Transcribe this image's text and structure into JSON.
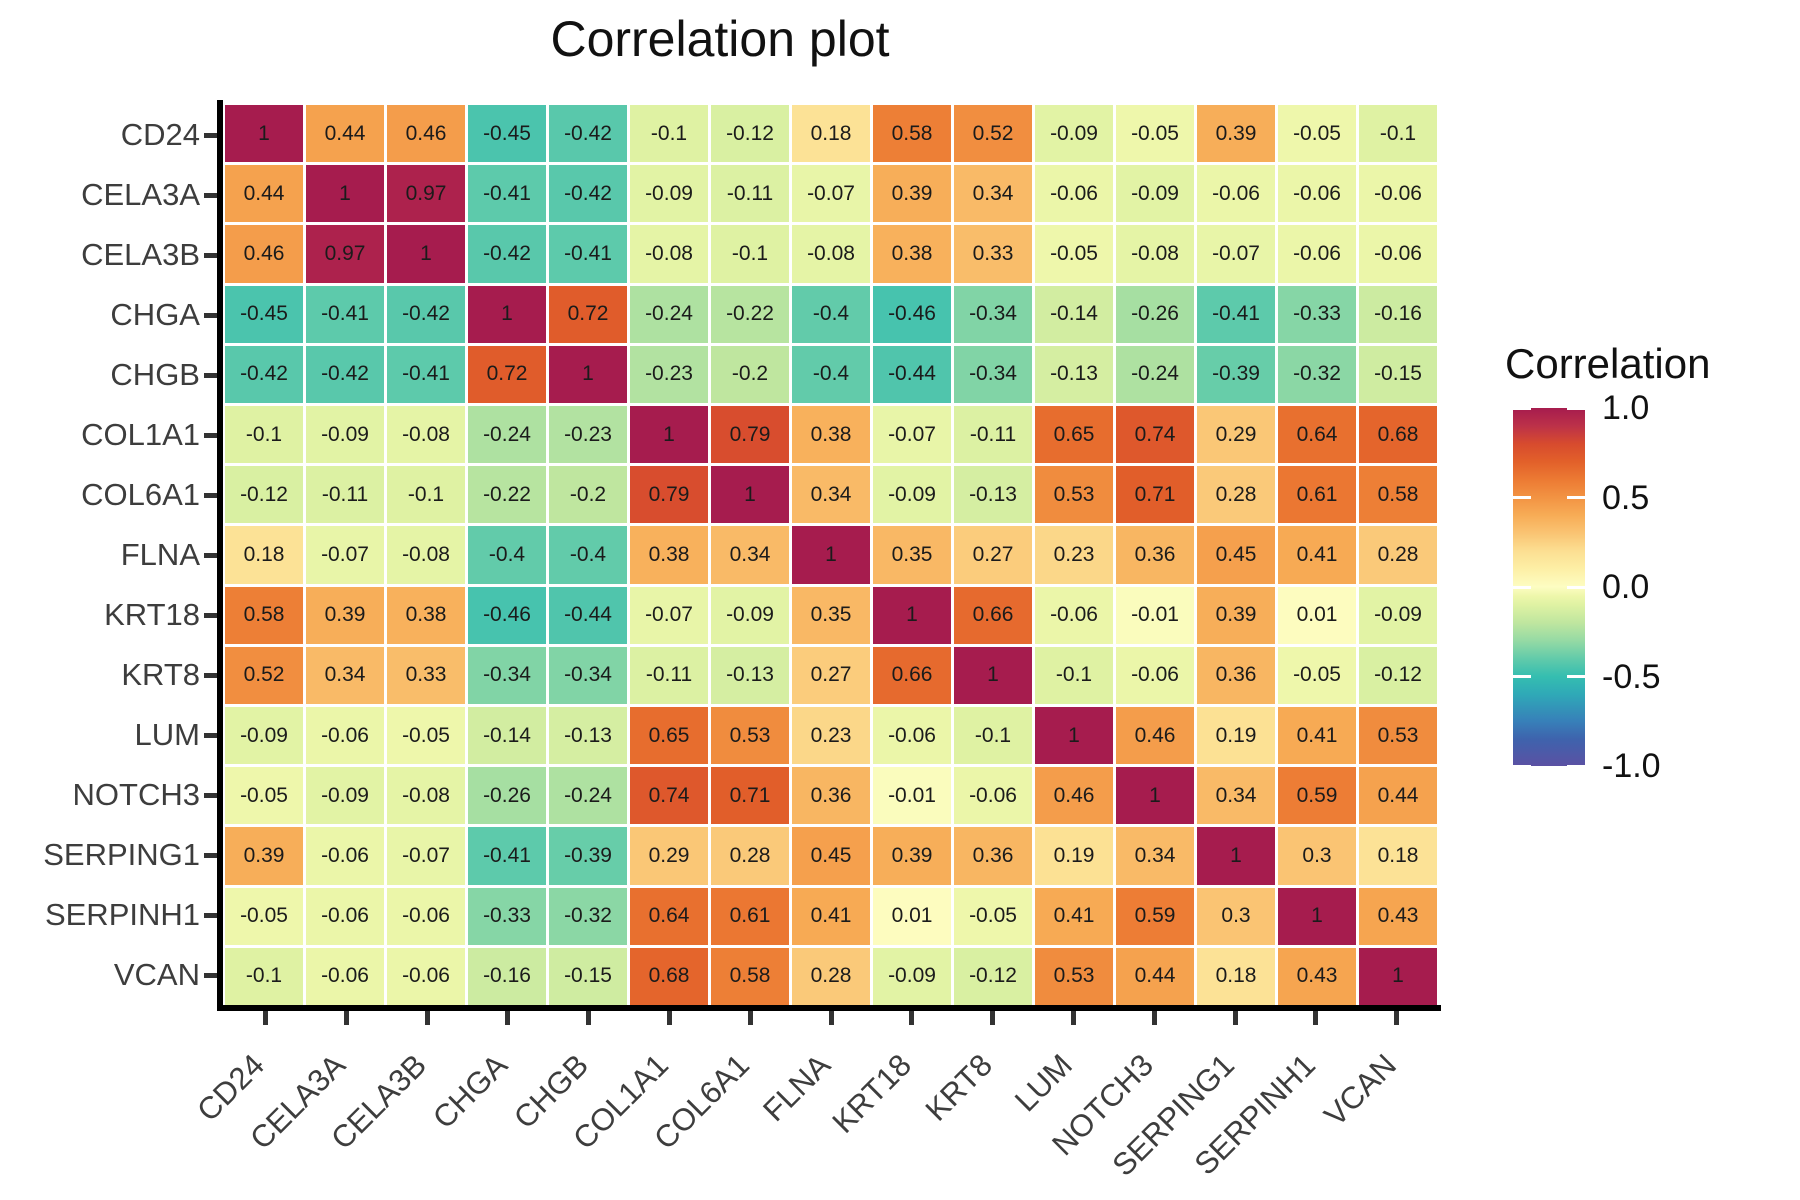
{
  "title": "Correlation plot",
  "legend": {
    "title": "Correlation",
    "ticks": [
      "1.0",
      "0.5",
      "0.0",
      "-0.5",
      "-1.0"
    ],
    "tick_values": [
      1.0,
      0.5,
      0.0,
      -0.5,
      -1.0
    ]
  },
  "colors": {
    "background": "#ffffff",
    "cell_text": "#1b1b1b",
    "axis_label": "#3d3d3d",
    "axis_line": "#000000",
    "title_text": "#111111",
    "diagonal": "#A61C4E"
  },
  "chart_data": {
    "type": "heatmap",
    "title": "Correlation plot",
    "legend_title": "Correlation",
    "legend_position": "right",
    "value_range": [
      -1,
      1
    ],
    "grid": "white cell borders",
    "categories": [
      "CD24",
      "CELA3A",
      "CELA3B",
      "CHGA",
      "CHGB",
      "COL1A1",
      "COL6A1",
      "FLNA",
      "KRT18",
      "KRT8",
      "LUM",
      "NOTCH3",
      "SERPING1",
      "SERPINH1",
      "VCAN"
    ],
    "matrix": [
      [
        1,
        0.44,
        0.46,
        -0.45,
        -0.42,
        -0.1,
        -0.12,
        0.18,
        0.58,
        0.52,
        -0.09,
        -0.05,
        0.39,
        -0.05,
        -0.1
      ],
      [
        0.44,
        1,
        0.97,
        -0.41,
        -0.42,
        -0.09,
        -0.11,
        -0.07,
        0.39,
        0.34,
        -0.06,
        -0.09,
        -0.06,
        -0.06,
        -0.06
      ],
      [
        0.46,
        0.97,
        1,
        -0.42,
        -0.41,
        -0.08,
        -0.1,
        -0.08,
        0.38,
        0.33,
        -0.05,
        -0.08,
        -0.07,
        -0.06,
        -0.06
      ],
      [
        -0.45,
        -0.41,
        -0.42,
        1,
        0.72,
        -0.24,
        -0.22,
        -0.4,
        -0.46,
        -0.34,
        -0.14,
        -0.26,
        -0.41,
        -0.33,
        -0.16
      ],
      [
        -0.42,
        -0.42,
        -0.41,
        0.72,
        1,
        -0.23,
        -0.2,
        -0.4,
        -0.44,
        -0.34,
        -0.13,
        -0.24,
        -0.39,
        -0.32,
        -0.15
      ],
      [
        -0.1,
        -0.09,
        -0.08,
        -0.24,
        -0.23,
        1,
        0.79,
        0.38,
        -0.07,
        -0.11,
        0.65,
        0.74,
        0.29,
        0.64,
        0.68
      ],
      [
        -0.12,
        -0.11,
        -0.1,
        -0.22,
        -0.2,
        0.79,
        1,
        0.34,
        -0.09,
        -0.13,
        0.53,
        0.71,
        0.28,
        0.61,
        0.58
      ],
      [
        0.18,
        -0.07,
        -0.08,
        -0.4,
        -0.4,
        0.38,
        0.34,
        1,
        0.35,
        0.27,
        0.23,
        0.36,
        0.45,
        0.41,
        0.28
      ],
      [
        0.58,
        0.39,
        0.38,
        -0.46,
        -0.44,
        -0.07,
        -0.09,
        0.35,
        1,
        0.66,
        -0.06,
        -0.01,
        0.39,
        0.01,
        -0.09
      ],
      [
        0.52,
        0.34,
        0.33,
        -0.34,
        -0.34,
        -0.11,
        -0.13,
        0.27,
        0.66,
        1,
        -0.1,
        -0.06,
        0.36,
        -0.05,
        -0.12
      ],
      [
        -0.09,
        -0.06,
        -0.05,
        -0.14,
        -0.13,
        0.65,
        0.53,
        0.23,
        -0.06,
        -0.1,
        1,
        0.46,
        0.19,
        0.41,
        0.53
      ],
      [
        -0.05,
        -0.09,
        -0.08,
        -0.26,
        -0.24,
        0.74,
        0.71,
        0.36,
        -0.01,
        -0.06,
        0.46,
        1,
        0.34,
        0.59,
        0.44
      ],
      [
        0.39,
        -0.06,
        -0.07,
        -0.41,
        -0.39,
        0.29,
        0.28,
        0.45,
        0.39,
        0.36,
        0.19,
        0.34,
        1,
        0.3,
        0.18
      ],
      [
        -0.05,
        -0.06,
        -0.06,
        -0.33,
        -0.32,
        0.64,
        0.61,
        0.41,
        0.01,
        -0.05,
        0.41,
        0.59,
        0.3,
        1,
        0.43
      ],
      [
        -0.1,
        -0.06,
        -0.06,
        -0.16,
        -0.15,
        0.68,
        0.58,
        0.28,
        -0.09,
        -0.12,
        0.53,
        0.44,
        0.18,
        0.43,
        1
      ]
    ],
    "color_stops": [
      {
        "v": -1.0,
        "c": "#5B51A3"
      },
      {
        "v": -0.85,
        "c": "#3E63AD"
      },
      {
        "v": -0.75,
        "c": "#3780B9"
      },
      {
        "v": -0.6,
        "c": "#2FA9B7"
      },
      {
        "v": -0.5,
        "c": "#35BEB0"
      },
      {
        "v": -0.45,
        "c": "#4BC4AD"
      },
      {
        "v": -0.4,
        "c": "#62CBAA"
      },
      {
        "v": -0.3,
        "c": "#95DAA4"
      },
      {
        "v": -0.2,
        "c": "#BFE69F"
      },
      {
        "v": -0.1,
        "c": "#DFF2A3"
      },
      {
        "v": -0.05,
        "c": "#EEF7AB"
      },
      {
        "v": 0.0,
        "c": "#FDFDC2"
      },
      {
        "v": 0.05,
        "c": "#FDF6B4"
      },
      {
        "v": 0.1,
        "c": "#FDEFA6"
      },
      {
        "v": 0.2,
        "c": "#FCDF92"
      },
      {
        "v": 0.3,
        "c": "#FAC473"
      },
      {
        "v": 0.4,
        "c": "#F7AC56"
      },
      {
        "v": 0.5,
        "c": "#F29343"
      },
      {
        "v": 0.6,
        "c": "#EC7A33"
      },
      {
        "v": 0.7,
        "c": "#E2602A"
      },
      {
        "v": 0.8,
        "c": "#D74B2E"
      },
      {
        "v": 0.9,
        "c": "#BC3149"
      },
      {
        "v": 1.0,
        "c": "#A61C4E"
      }
    ]
  }
}
